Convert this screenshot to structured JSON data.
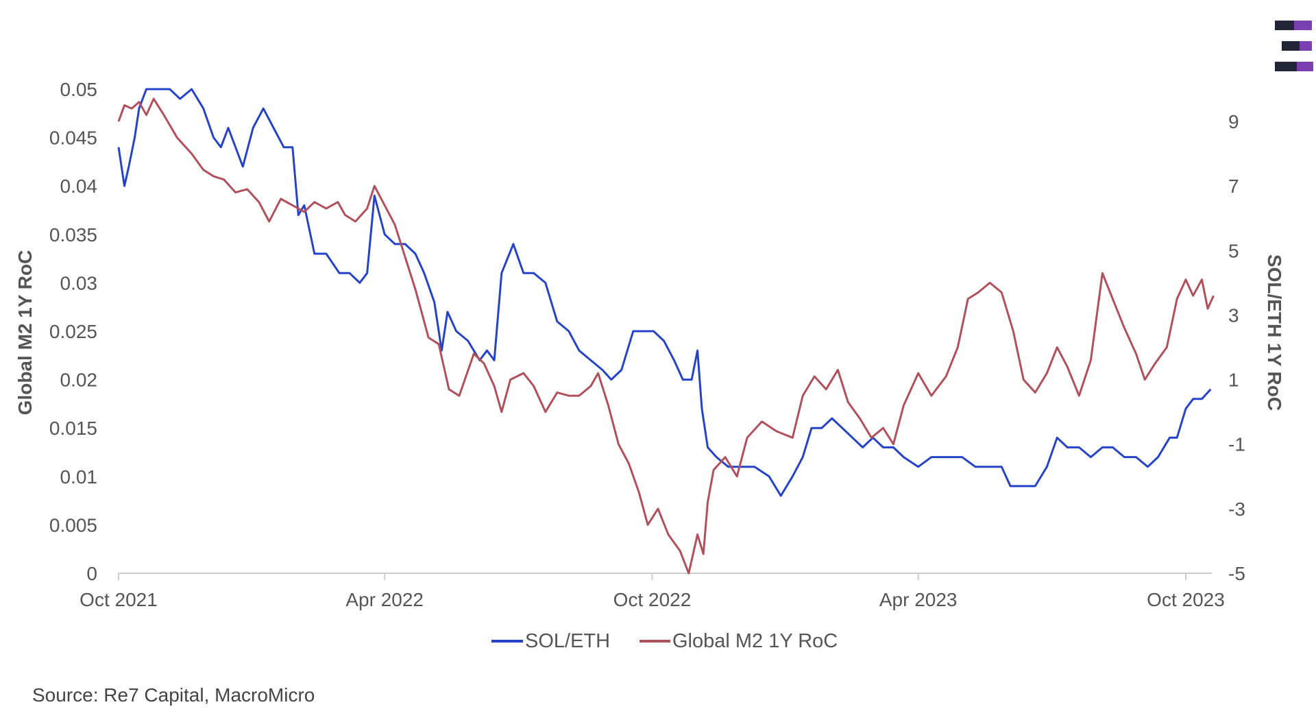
{
  "chart_data": {
    "type": "line",
    "left_axis": {
      "label": "Global M2 1Y RoC",
      "ylim": [
        0,
        0.05
      ],
      "ticks": [
        "0",
        "0.005",
        "0.01",
        "0.015",
        "0.02",
        "0.025",
        "0.03",
        "0.035",
        "0.04",
        "0.045",
        "0.05"
      ]
    },
    "right_axis": {
      "label": "SOL/ETH 1Y RoC",
      "ylim": [
        -5,
        10
      ],
      "ticks": [
        "-5",
        "-3",
        "-1",
        "1",
        "3",
        "5",
        "7",
        "9"
      ]
    },
    "x_axis": {
      "ticks": [
        {
          "date": "2021-10-01",
          "label": "Oct 2021"
        },
        {
          "date": "2022-04-01",
          "label": "Apr 2022"
        },
        {
          "date": "2022-10-01",
          "label": "Oct 2022"
        },
        {
          "date": "2023-04-01",
          "label": "Apr 2023"
        },
        {
          "date": "2023-10-01",
          "label": "Oct 2023"
        }
      ],
      "range": [
        "2021-10-01",
        "2023-10-20"
      ]
    },
    "legend": {
      "position": "bottom-center"
    },
    "series": [
      {
        "name": "SOL/ETH",
        "axis": "left",
        "color": "#2443c9",
        "points": [
          [
            "2021-10-01",
            0.044
          ],
          [
            "2021-10-05",
            0.04
          ],
          [
            "2021-10-08",
            0.042
          ],
          [
            "2021-10-12",
            0.045
          ],
          [
            "2021-10-15",
            0.048
          ],
          [
            "2021-10-20",
            0.05
          ],
          [
            "2021-10-28",
            0.05
          ],
          [
            "2021-11-05",
            0.05
          ],
          [
            "2021-11-12",
            0.049
          ],
          [
            "2021-11-20",
            0.05
          ],
          [
            "2021-11-28",
            0.048
          ],
          [
            "2021-12-05",
            0.045
          ],
          [
            "2021-12-10",
            0.044
          ],
          [
            "2021-12-15",
            0.046
          ],
          [
            "2021-12-25",
            0.042
          ],
          [
            "2022-01-01",
            0.046
          ],
          [
            "2022-01-08",
            0.048
          ],
          [
            "2022-01-15",
            0.046
          ],
          [
            "2022-01-22",
            0.044
          ],
          [
            "2022-01-28",
            0.044
          ],
          [
            "2022-02-01",
            0.037
          ],
          [
            "2022-02-05",
            0.038
          ],
          [
            "2022-02-12",
            0.033
          ],
          [
            "2022-02-20",
            0.033
          ],
          [
            "2022-03-01",
            0.031
          ],
          [
            "2022-03-08",
            0.031
          ],
          [
            "2022-03-15",
            0.03
          ],
          [
            "2022-03-20",
            0.031
          ],
          [
            "2022-03-25",
            0.039
          ],
          [
            "2022-04-01",
            0.035
          ],
          [
            "2022-04-08",
            0.034
          ],
          [
            "2022-04-15",
            0.034
          ],
          [
            "2022-04-22",
            0.033
          ],
          [
            "2022-04-28",
            0.031
          ],
          [
            "2022-05-05",
            0.028
          ],
          [
            "2022-05-10",
            0.023
          ],
          [
            "2022-05-14",
            0.027
          ],
          [
            "2022-05-20",
            0.025
          ],
          [
            "2022-05-28",
            0.024
          ],
          [
            "2022-06-05",
            0.022
          ],
          [
            "2022-06-10",
            0.023
          ],
          [
            "2022-06-15",
            0.022
          ],
          [
            "2022-06-20",
            0.031
          ],
          [
            "2022-06-28",
            0.034
          ],
          [
            "2022-07-05",
            0.031
          ],
          [
            "2022-07-12",
            0.031
          ],
          [
            "2022-07-20",
            0.03
          ],
          [
            "2022-07-28",
            0.026
          ],
          [
            "2022-08-05",
            0.025
          ],
          [
            "2022-08-12",
            0.023
          ],
          [
            "2022-08-20",
            0.022
          ],
          [
            "2022-08-28",
            0.021
          ],
          [
            "2022-09-03",
            0.02
          ],
          [
            "2022-09-10",
            0.021
          ],
          [
            "2022-09-18",
            0.025
          ],
          [
            "2022-09-25",
            0.025
          ],
          [
            "2022-10-02",
            0.025
          ],
          [
            "2022-10-09",
            0.024
          ],
          [
            "2022-10-16",
            0.022
          ],
          [
            "2022-10-22",
            0.02
          ],
          [
            "2022-10-28",
            0.02
          ],
          [
            "2022-11-01",
            0.023
          ],
          [
            "2022-11-04",
            0.017
          ],
          [
            "2022-11-08",
            0.013
          ],
          [
            "2022-11-14",
            0.012
          ],
          [
            "2022-11-22",
            0.011
          ],
          [
            "2022-12-01",
            0.011
          ],
          [
            "2022-12-10",
            0.011
          ],
          [
            "2022-12-20",
            0.01
          ],
          [
            "2022-12-28",
            0.008
          ],
          [
            "2023-01-05",
            0.01
          ],
          [
            "2023-01-12",
            0.012
          ],
          [
            "2023-01-18",
            0.015
          ],
          [
            "2023-01-25",
            0.015
          ],
          [
            "2023-02-01",
            0.016
          ],
          [
            "2023-02-08",
            0.015
          ],
          [
            "2023-02-15",
            0.014
          ],
          [
            "2023-02-22",
            0.013
          ],
          [
            "2023-03-01",
            0.014
          ],
          [
            "2023-03-08",
            0.013
          ],
          [
            "2023-03-15",
            0.013
          ],
          [
            "2023-03-22",
            0.012
          ],
          [
            "2023-04-01",
            0.011
          ],
          [
            "2023-04-10",
            0.012
          ],
          [
            "2023-04-20",
            0.012
          ],
          [
            "2023-05-01",
            0.012
          ],
          [
            "2023-05-10",
            0.011
          ],
          [
            "2023-05-20",
            0.011
          ],
          [
            "2023-05-28",
            0.011
          ],
          [
            "2023-06-03",
            0.009
          ],
          [
            "2023-06-10",
            0.009
          ],
          [
            "2023-06-20",
            0.009
          ],
          [
            "2023-06-28",
            0.011
          ],
          [
            "2023-07-05",
            0.014
          ],
          [
            "2023-07-12",
            0.013
          ],
          [
            "2023-07-20",
            0.013
          ],
          [
            "2023-07-28",
            0.012
          ],
          [
            "2023-08-05",
            0.013
          ],
          [
            "2023-08-12",
            0.013
          ],
          [
            "2023-08-20",
            0.012
          ],
          [
            "2023-08-28",
            0.012
          ],
          [
            "2023-09-05",
            0.011
          ],
          [
            "2023-09-12",
            0.012
          ],
          [
            "2023-09-20",
            0.014
          ],
          [
            "2023-09-25",
            0.014
          ],
          [
            "2023-10-01",
            0.017
          ],
          [
            "2023-10-06",
            0.018
          ],
          [
            "2023-10-12",
            0.018
          ],
          [
            "2023-10-18",
            0.019
          ]
        ]
      },
      {
        "name": "Global M2 1Y RoC",
        "axis": "right",
        "color": "#b1505a",
        "points": [
          [
            "2021-10-01",
            9.0
          ],
          [
            "2021-10-05",
            9.5
          ],
          [
            "2021-10-10",
            9.4
          ],
          [
            "2021-10-15",
            9.6
          ],
          [
            "2021-10-20",
            9.2
          ],
          [
            "2021-10-25",
            9.7
          ],
          [
            "2021-11-01",
            9.2
          ],
          [
            "2021-11-10",
            8.5
          ],
          [
            "2021-11-20",
            8.0
          ],
          [
            "2021-11-28",
            7.5
          ],
          [
            "2021-12-05",
            7.3
          ],
          [
            "2021-12-12",
            7.2
          ],
          [
            "2021-12-20",
            6.8
          ],
          [
            "2021-12-28",
            6.9
          ],
          [
            "2022-01-05",
            6.5
          ],
          [
            "2022-01-12",
            5.9
          ],
          [
            "2022-01-20",
            6.6
          ],
          [
            "2022-01-28",
            6.4
          ],
          [
            "2022-02-05",
            6.2
          ],
          [
            "2022-02-12",
            6.5
          ],
          [
            "2022-02-20",
            6.3
          ],
          [
            "2022-02-28",
            6.5
          ],
          [
            "2022-03-05",
            6.1
          ],
          [
            "2022-03-12",
            5.9
          ],
          [
            "2022-03-20",
            6.3
          ],
          [
            "2022-03-25",
            7.0
          ],
          [
            "2022-04-01",
            6.4
          ],
          [
            "2022-04-08",
            5.8
          ],
          [
            "2022-04-15",
            4.8
          ],
          [
            "2022-04-22",
            3.8
          ],
          [
            "2022-05-01",
            2.3
          ],
          [
            "2022-05-08",
            2.1
          ],
          [
            "2022-05-15",
            0.7
          ],
          [
            "2022-05-22",
            0.5
          ],
          [
            "2022-06-01",
            1.8
          ],
          [
            "2022-06-08",
            1.5
          ],
          [
            "2022-06-15",
            0.8
          ],
          [
            "2022-06-20",
            0.0
          ],
          [
            "2022-06-26",
            1.0
          ],
          [
            "2022-07-05",
            1.2
          ],
          [
            "2022-07-12",
            0.8
          ],
          [
            "2022-07-20",
            0.0
          ],
          [
            "2022-07-28",
            0.6
          ],
          [
            "2022-08-05",
            0.5
          ],
          [
            "2022-08-12",
            0.5
          ],
          [
            "2022-08-20",
            0.8
          ],
          [
            "2022-08-25",
            1.2
          ],
          [
            "2022-09-01",
            0.2
          ],
          [
            "2022-09-08",
            -1.0
          ],
          [
            "2022-09-15",
            -1.6
          ],
          [
            "2022-09-22",
            -2.5
          ],
          [
            "2022-09-28",
            -3.5
          ],
          [
            "2022-10-05",
            -3.0
          ],
          [
            "2022-10-12",
            -3.8
          ],
          [
            "2022-10-20",
            -4.3
          ],
          [
            "2022-10-26",
            -5.0
          ],
          [
            "2022-11-01",
            -3.8
          ],
          [
            "2022-11-05",
            -4.4
          ],
          [
            "2022-11-08",
            -2.8
          ],
          [
            "2022-11-12",
            -1.8
          ],
          [
            "2022-11-20",
            -1.4
          ],
          [
            "2022-11-28",
            -2.0
          ],
          [
            "2022-12-05",
            -0.8
          ],
          [
            "2022-12-15",
            -0.3
          ],
          [
            "2022-12-25",
            -0.6
          ],
          [
            "2023-01-05",
            -0.8
          ],
          [
            "2023-01-12",
            0.5
          ],
          [
            "2023-01-20",
            1.1
          ],
          [
            "2023-01-28",
            0.7
          ],
          [
            "2023-02-05",
            1.3
          ],
          [
            "2023-02-12",
            0.3
          ],
          [
            "2023-02-20",
            -0.2
          ],
          [
            "2023-02-28",
            -0.8
          ],
          [
            "2023-03-08",
            -0.5
          ],
          [
            "2023-03-15",
            -1.0
          ],
          [
            "2023-03-22",
            0.2
          ],
          [
            "2023-04-01",
            1.2
          ],
          [
            "2023-04-10",
            0.5
          ],
          [
            "2023-04-20",
            1.1
          ],
          [
            "2023-04-28",
            2.0
          ],
          [
            "2023-05-05",
            3.5
          ],
          [
            "2023-05-12",
            3.7
          ],
          [
            "2023-05-20",
            4.0
          ],
          [
            "2023-05-28",
            3.7
          ],
          [
            "2023-06-05",
            2.5
          ],
          [
            "2023-06-12",
            1.0
          ],
          [
            "2023-06-20",
            0.6
          ],
          [
            "2023-06-28",
            1.2
          ],
          [
            "2023-07-05",
            2.0
          ],
          [
            "2023-07-12",
            1.4
          ],
          [
            "2023-07-20",
            0.5
          ],
          [
            "2023-07-28",
            1.6
          ],
          [
            "2023-08-05",
            4.3
          ],
          [
            "2023-08-12",
            3.5
          ],
          [
            "2023-08-20",
            2.6
          ],
          [
            "2023-08-28",
            1.8
          ],
          [
            "2023-09-03",
            1.0
          ],
          [
            "2023-09-10",
            1.5
          ],
          [
            "2023-09-18",
            2.0
          ],
          [
            "2023-09-25",
            3.5
          ],
          [
            "2023-10-01",
            4.1
          ],
          [
            "2023-10-06",
            3.6
          ],
          [
            "2023-10-12",
            4.1
          ],
          [
            "2023-10-16",
            3.2
          ],
          [
            "2023-10-20",
            3.6
          ]
        ]
      }
    ]
  },
  "source": "Source: Re7 Capital, MacroMicro",
  "colors": {
    "logo_dark": "#222636",
    "logo_accent": "#7a3fb0"
  }
}
